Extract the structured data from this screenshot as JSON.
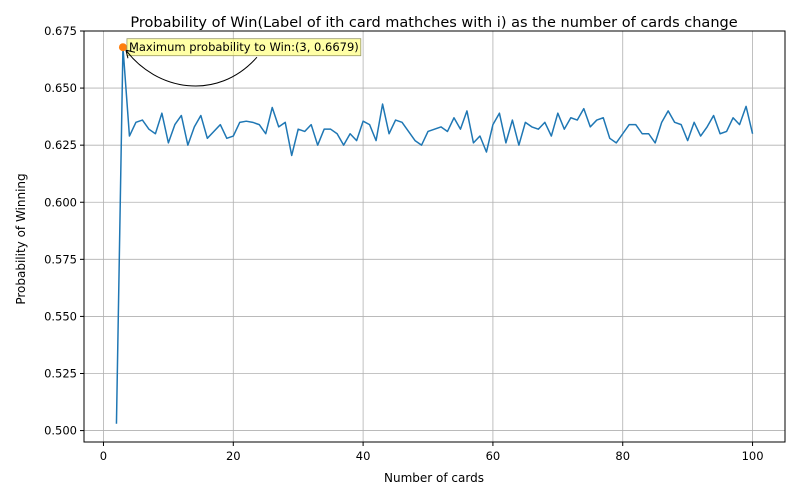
{
  "chart_data": {
    "type": "line",
    "title": "Probability of Win(Label of ith card mathches with i) as the number of cards change",
    "xlabel": "Number of cards",
    "ylabel": "Probability of Winning",
    "xlim": [
      -3,
      105
    ],
    "ylim": [
      0.495,
      0.675
    ],
    "xticks": [
      0,
      20,
      40,
      60,
      80,
      100
    ],
    "yticks": [
      0.5,
      0.525,
      0.55,
      0.575,
      0.6,
      0.625,
      0.65,
      0.675
    ],
    "ytick_labels": [
      "0.500",
      "0.525",
      "0.550",
      "0.575",
      "0.600",
      "0.625",
      "0.650",
      "0.675"
    ],
    "grid": true,
    "series": [
      {
        "color": "#1f77b4",
        "x": [
          2,
          3,
          4,
          5,
          6,
          7,
          8,
          9,
          10,
          11,
          12,
          13,
          14,
          15,
          16,
          17,
          18,
          19,
          20,
          21,
          22,
          23,
          24,
          25,
          26,
          27,
          28,
          29,
          30,
          31,
          32,
          33,
          34,
          35,
          36,
          37,
          38,
          39,
          40,
          41,
          42,
          43,
          44,
          45,
          46,
          47,
          48,
          49,
          50,
          51,
          52,
          53,
          54,
          55,
          56,
          57,
          58,
          59,
          60,
          61,
          62,
          63,
          64,
          65,
          66,
          67,
          68,
          69,
          70,
          71,
          72,
          73,
          74,
          75,
          76,
          77,
          78,
          79,
          80,
          81,
          82,
          83,
          84,
          85,
          86,
          87,
          88,
          89,
          90,
          91,
          92,
          93,
          94,
          95,
          96,
          97,
          98,
          99,
          100
        ],
        "y": [
          0.503,
          0.6679,
          0.629,
          0.635,
          0.636,
          0.632,
          0.63,
          0.639,
          0.626,
          0.634,
          0.638,
          0.625,
          0.633,
          0.638,
          0.628,
          0.631,
          0.634,
          0.628,
          0.629,
          0.635,
          0.6355,
          0.635,
          0.634,
          0.63,
          0.6415,
          0.633,
          0.635,
          0.6205,
          0.632,
          0.631,
          0.634,
          0.625,
          0.632,
          0.632,
          0.63,
          0.625,
          0.63,
          0.627,
          0.6355,
          0.634,
          0.627,
          0.643,
          0.63,
          0.636,
          0.635,
          0.631,
          0.627,
          0.625,
          0.631,
          0.632,
          0.633,
          0.631,
          0.637,
          0.632,
          0.64,
          0.626,
          0.629,
          0.622,
          0.634,
          0.639,
          0.626,
          0.636,
          0.625,
          0.635,
          0.633,
          0.632,
          0.635,
          0.629,
          0.639,
          0.632,
          0.637,
          0.636,
          0.641,
          0.633,
          0.636,
          0.637,
          0.628,
          0.626,
          0.63,
          0.634,
          0.634,
          0.63,
          0.63,
          0.626,
          0.635,
          0.64,
          0.635,
          0.634,
          0.627,
          0.635,
          0.629,
          0.633,
          0.638,
          0.63,
          0.631,
          0.637,
          0.634,
          0.642,
          0.63
        ]
      }
    ],
    "highlight_point": {
      "x": 3,
      "y": 0.6679,
      "color": "#ff7f0e"
    },
    "annotation": {
      "text": "Maximum probability to Win:(3, 0.6679)",
      "box_color": "#ffff80"
    }
  }
}
